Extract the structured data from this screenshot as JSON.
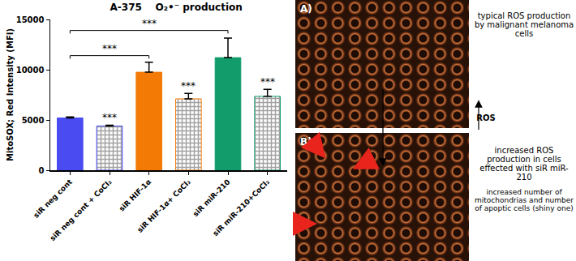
{
  "chart_data": {
    "type": "bar",
    "title": "A-375    O₂•⁻ production",
    "y_label": "MitoSOX; Red Intensity (MFI)",
    "categories": [
      "siR neg cont",
      "siR neg cont + CoCl₂",
      "siR HIF-1α",
      "siR HIF-1α+ CoCl₂",
      "siR miR-210",
      "siR miR-210+CoCl₂"
    ],
    "values": [
      5200,
      4400,
      9750,
      7100,
      11200,
      7350
    ],
    "errors": [
      100,
      80,
      1000,
      550,
      1950,
      700
    ],
    "colors": [
      "#4b4bf2",
      "#4b4bf2",
      "#f27a05",
      "#f27a05",
      "#129c6c",
      "#129c6c"
    ],
    "significance": [
      null,
      "***",
      null,
      "***",
      null,
      "***"
    ],
    "brackets": [
      {
        "from": 0,
        "to": 2,
        "y": 11400,
        "label": "***"
      },
      {
        "from": 0,
        "to": 4,
        "y": 13900,
        "label": "***"
      }
    ],
    "ylim": [
      0,
      15000
    ],
    "yticks": [
      0,
      5000,
      10000,
      15000
    ],
    "grid": false
  },
  "panels": [
    {
      "label": "A)",
      "caption": "typical ROS production by malignant melanoma cells"
    },
    {
      "label": "B)",
      "caption": "increased ROS production in cells effected with siR miR-210",
      "note": "increased number of mitochondrias and number of apoptic cells (shiny one)"
    }
  ],
  "arrow_label": "ROS"
}
